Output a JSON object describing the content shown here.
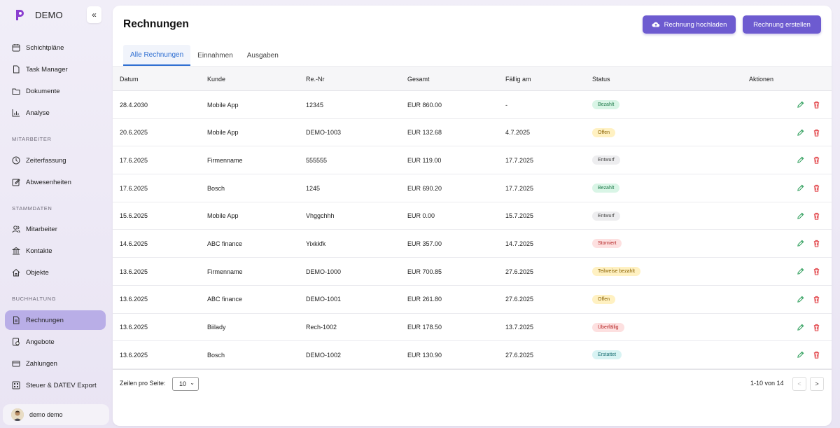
{
  "brand": {
    "name": "DEMO",
    "logo_icon": "p-logo-icon"
  },
  "sidebar": {
    "collapse_label": "«",
    "items_top": [
      {
        "label": "Schichtpläne",
        "icon": "calendar-icon"
      },
      {
        "label": "Task Manager",
        "icon": "document-icon"
      },
      {
        "label": "Dokumente",
        "icon": "folder-icon"
      },
      {
        "label": "Analyse",
        "icon": "chart-icon"
      }
    ],
    "section_mitarbeiter": "MITARBEITER",
    "items_mitarbeiter": [
      {
        "label": "Zeiterfassung",
        "icon": "clock-icon"
      },
      {
        "label": "Abwesenheiten",
        "icon": "edit-icon"
      }
    ],
    "section_stammdaten": "STAMMDATEN",
    "items_stammdaten": [
      {
        "label": "Mitarbeiter",
        "icon": "users-icon"
      },
      {
        "label": "Kontakte",
        "icon": "building-icon"
      },
      {
        "label": "Objekte",
        "icon": "home-icon"
      }
    ],
    "section_buchhaltung": "BUCHHALTUNG",
    "items_buchhaltung": [
      {
        "label": "Rechnungen",
        "icon": "invoice-icon",
        "active": true
      },
      {
        "label": "Angebote",
        "icon": "offer-icon"
      },
      {
        "label": "Zahlungen",
        "icon": "card-icon"
      },
      {
        "label": "Steuer & DATEV Export",
        "icon": "export-icon"
      }
    ],
    "user": {
      "name": "demo demo"
    }
  },
  "header": {
    "title": "Rechnungen",
    "upload_label": "Rechnung hochladen",
    "create_label": "Rechnung erstellen"
  },
  "tabs": [
    "Alle Rechnungen",
    "Einnahmen",
    "Ausgaben"
  ],
  "table": {
    "columns": [
      "Datum",
      "Kunde",
      "Re.-Nr",
      "Gesamt",
      "Fällig am",
      "Status",
      "Aktionen"
    ],
    "rows": [
      {
        "datum": "28.4.2030",
        "kunde": "Mobile App",
        "nr": "12345",
        "gesamt": "EUR 860.00",
        "faellig": "-",
        "status": "Bezahlt"
      },
      {
        "datum": "20.6.2025",
        "kunde": "Mobile App",
        "nr": "DEMO-1003",
        "gesamt": "EUR 132.68",
        "faellig": "4.7.2025",
        "status": "Offen"
      },
      {
        "datum": "17.6.2025",
        "kunde": "Firmenname",
        "nr": "555555",
        "gesamt": "EUR 119.00",
        "faellig": "17.7.2025",
        "status": "Entwurf"
      },
      {
        "datum": "17.6.2025",
        "kunde": "Bosch",
        "nr": "1245",
        "gesamt": "EUR 690.20",
        "faellig": "17.7.2025",
        "status": "Bezahlt"
      },
      {
        "datum": "15.6.2025",
        "kunde": "Mobile App",
        "nr": "Vhggchhh",
        "gesamt": "EUR 0.00",
        "faellig": "15.7.2025",
        "status": "Entwurf"
      },
      {
        "datum": "14.6.2025",
        "kunde": "ABC finance",
        "nr": "Yixkkfk",
        "gesamt": "EUR 357.00",
        "faellig": "14.7.2025",
        "status": "Storniert"
      },
      {
        "datum": "13.6.2025",
        "kunde": "Firmenname",
        "nr": "DEMO-1000",
        "gesamt": "EUR 700.85",
        "faellig": "27.6.2025",
        "status": "Teilweise bezahlt"
      },
      {
        "datum": "13.6.2025",
        "kunde": "ABC finance",
        "nr": "DEMO-1001",
        "gesamt": "EUR 261.80",
        "faellig": "27.6.2025",
        "status": "Offen"
      },
      {
        "datum": "13.6.2025",
        "kunde": "Biilady",
        "nr": "Rech-1002",
        "gesamt": "EUR 178.50",
        "faellig": "13.7.2025",
        "status": "Überfällig"
      },
      {
        "datum": "13.6.2025",
        "kunde": "Bosch",
        "nr": "DEMO-1002",
        "gesamt": "EUR 130.90",
        "faellig": "27.6.2025",
        "status": "Erstattet"
      }
    ]
  },
  "status_colors": {
    "Bezahlt": {
      "bg": "#d9f5e6",
      "fg": "#1f7a4a"
    },
    "Offen": {
      "bg": "#fff1c2",
      "fg": "#8a6100"
    },
    "Entwurf": {
      "bg": "#ededef",
      "fg": "#444444"
    },
    "Storniert": {
      "bg": "#fde0e0",
      "fg": "#b42323"
    },
    "Teilweise bezahlt": {
      "bg": "#fff1c2",
      "fg": "#8a6100"
    },
    "Überfällig": {
      "bg": "#fde0e0",
      "fg": "#b42323"
    },
    "Erstattet": {
      "bg": "#d8f3f3",
      "fg": "#1a6f73"
    }
  },
  "pagination": {
    "rows_per_page_label": "Zeilen pro Seite:",
    "rows_per_page_value": "10",
    "range_text": "1-10 von 14",
    "prev_label": "<",
    "next_label": ">"
  },
  "colors": {
    "accent": "#6d5bd0",
    "active_nav": "#b9aee7",
    "tab_active": "#2f6fd2",
    "edit_icon": "#2e9e5b",
    "delete_icon": "#e0393e"
  }
}
